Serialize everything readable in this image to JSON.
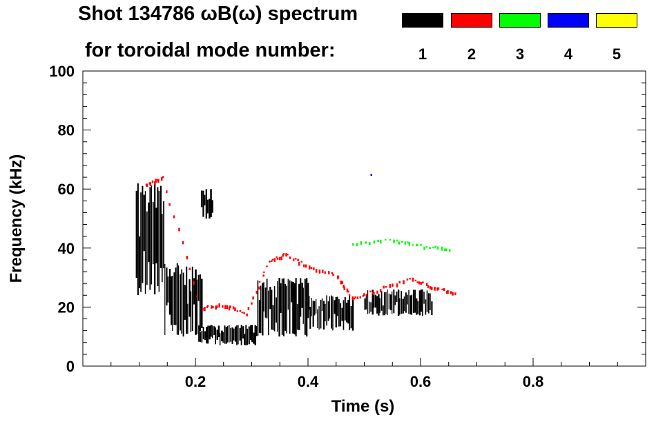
{
  "title_line1": "Shot 134786 ωB(ω) spectrum",
  "title_line2": "for toroidal mode number:",
  "legend": [
    {
      "mode": "1",
      "color": "#000000"
    },
    {
      "mode": "2",
      "color": "#ff0000"
    },
    {
      "mode": "3",
      "color": "#00ff00"
    },
    {
      "mode": "4",
      "color": "#0000ff"
    },
    {
      "mode": "5",
      "color": "#ffff00"
    }
  ],
  "chart_data": {
    "type": "heatmap",
    "title": "Shot 134786 ωB(ω) spectrum",
    "xlabel": "Time (s)",
    "ylabel": "Frequency (kHz)",
    "xlim": [
      0.0,
      1.0
    ],
    "ylim": [
      0,
      100
    ],
    "xticks": [
      0.2,
      0.4,
      0.6,
      0.8
    ],
    "xtick_labels": [
      "0.2",
      "0.4",
      "0.6",
      "0.8"
    ],
    "yticks": [
      0,
      20,
      40,
      60,
      80,
      100
    ],
    "ytick_labels": [
      "0",
      "20",
      "40",
      "60",
      "80",
      "100"
    ],
    "series": [
      {
        "name": "n=1",
        "color": "#000000",
        "regions": [
          {
            "t": [
              0.094,
              0.145
            ],
            "f": [
              24,
              62
            ]
          },
          {
            "t": [
              0.145,
              0.21
            ],
            "f": [
              10,
              35
            ]
          },
          {
            "t": [
              0.205,
              0.31
            ],
            "f": [
              7,
              14
            ]
          },
          {
            "t": [
              0.31,
              0.4
            ],
            "f": [
              10,
              30
            ]
          },
          {
            "t": [
              0.4,
              0.48
            ],
            "f": [
              12,
              24
            ]
          },
          {
            "t": [
              0.5,
              0.62
            ],
            "f": [
              17,
              26
            ]
          },
          {
            "t": [
              0.21,
              0.23
            ],
            "f": [
              50,
              60
            ]
          }
        ]
      },
      {
        "name": "n=2",
        "color": "#ff0000",
        "track": [
          [
            0.11,
            62
          ],
          [
            0.14,
            64
          ],
          [
            0.21,
            20
          ],
          [
            0.25,
            21
          ],
          [
            0.29,
            18
          ],
          [
            0.33,
            36
          ],
          [
            0.36,
            38
          ],
          [
            0.4,
            34
          ],
          [
            0.45,
            31
          ],
          [
            0.48,
            23
          ],
          [
            0.52,
            26
          ],
          [
            0.58,
            30
          ],
          [
            0.62,
            27
          ],
          [
            0.66,
            25
          ]
        ]
      },
      {
        "name": "n=3",
        "color": "#00ff00",
        "track": [
          [
            0.48,
            42
          ],
          [
            0.55,
            43
          ],
          [
            0.6,
            41
          ],
          [
            0.65,
            40
          ]
        ]
      },
      {
        "name": "n=4",
        "color": "#0000ff",
        "track": [
          [
            0.51,
            65
          ]
        ]
      },
      {
        "name": "n=5",
        "color": "#ffff00",
        "track": []
      }
    ]
  }
}
